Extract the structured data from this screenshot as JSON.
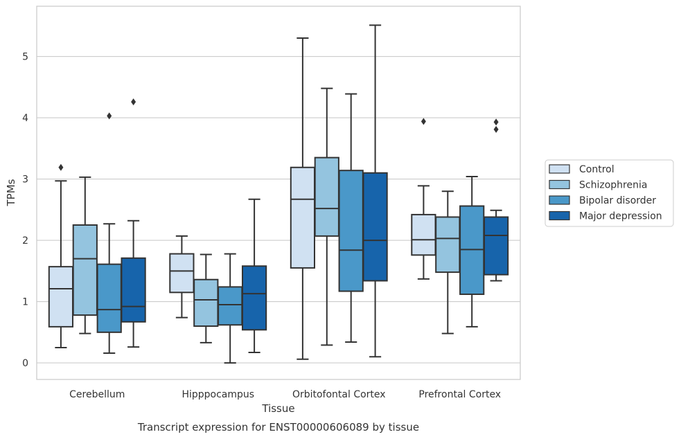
{
  "colors": {
    "grid": "#cccccc",
    "frame": "#cccccc",
    "stroke": "#333333",
    "series": [
      "#d0e1f2",
      "#94c4df",
      "#4a98c9",
      "#1764ab"
    ]
  },
  "chart_data": {
    "type": "box",
    "title": "",
    "caption": "Transcript expression for ENST00000606089 by tissue",
    "xlabel": "Tissue",
    "ylabel": "TPMs",
    "ylim": [
      -0.27,
      5.82
    ],
    "yticks": [
      "0",
      "1",
      "2",
      "3",
      "4",
      "5"
    ],
    "categories": [
      "Cerebellum",
      "Hipppocampus",
      "Orbitofontal Cortex",
      "Prefrontal Cortex"
    ],
    "grid": true,
    "legend_position": "right",
    "series": [
      {
        "name": "Control",
        "boxes": [
          {
            "whislo": 0.25,
            "q1": 0.59,
            "med": 1.21,
            "q3": 1.57,
            "whishi": 2.97,
            "fliers": [
              3.19
            ]
          },
          {
            "whislo": 0.74,
            "q1": 1.15,
            "med": 1.5,
            "q3": 1.78,
            "whishi": 2.07,
            "fliers": []
          },
          {
            "whislo": 0.06,
            "q1": 1.55,
            "med": 2.67,
            "q3": 3.19,
            "whishi": 5.3,
            "fliers": []
          },
          {
            "whislo": 1.37,
            "q1": 1.76,
            "med": 2.01,
            "q3": 2.42,
            "whishi": 2.89,
            "fliers": [
              3.94
            ]
          }
        ]
      },
      {
        "name": "Schizophrenia",
        "boxes": [
          {
            "whislo": 0.48,
            "q1": 0.78,
            "med": 1.7,
            "q3": 2.25,
            "whishi": 3.03,
            "fliers": []
          },
          {
            "whislo": 0.33,
            "q1": 0.6,
            "med": 1.03,
            "q3": 1.36,
            "whishi": 1.77,
            "fliers": []
          },
          {
            "whislo": 0.29,
            "q1": 2.07,
            "med": 2.52,
            "q3": 3.35,
            "whishi": 4.48,
            "fliers": []
          },
          {
            "whislo": 0.48,
            "q1": 1.48,
            "med": 2.03,
            "q3": 2.38,
            "whishi": 2.8,
            "fliers": []
          }
        ]
      },
      {
        "name": "Bipolar disorder",
        "boxes": [
          {
            "whislo": 0.16,
            "q1": 0.5,
            "med": 0.87,
            "q3": 1.61,
            "whishi": 2.27,
            "fliers": [
              4.03
            ]
          },
          {
            "whislo": 0.0,
            "q1": 0.62,
            "med": 0.95,
            "q3": 1.24,
            "whishi": 1.78,
            "fliers": []
          },
          {
            "whislo": 0.34,
            "q1": 1.17,
            "med": 1.84,
            "q3": 3.14,
            "whishi": 4.39,
            "fliers": []
          },
          {
            "whislo": 0.59,
            "q1": 1.12,
            "med": 1.85,
            "q3": 2.56,
            "whishi": 3.04,
            "fliers": []
          }
        ]
      },
      {
        "name": "Major depression",
        "boxes": [
          {
            "whislo": 0.26,
            "q1": 0.67,
            "med": 0.92,
            "q3": 1.71,
            "whishi": 2.32,
            "fliers": [
              4.26
            ]
          },
          {
            "whislo": 0.17,
            "q1": 0.54,
            "med": 1.13,
            "q3": 1.58,
            "whishi": 2.67,
            "fliers": []
          },
          {
            "whislo": 0.1,
            "q1": 1.34,
            "med": 2.0,
            "q3": 3.1,
            "whishi": 5.51,
            "fliers": []
          },
          {
            "whislo": 1.34,
            "q1": 1.44,
            "med": 2.08,
            "q3": 2.38,
            "whishi": 2.49,
            "fliers": [
              3.81,
              3.93
            ]
          }
        ]
      }
    ]
  }
}
